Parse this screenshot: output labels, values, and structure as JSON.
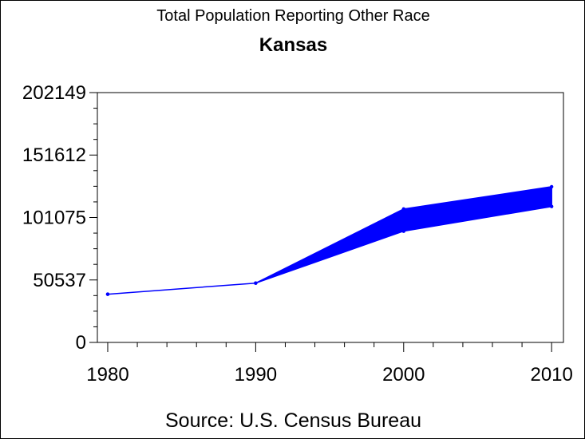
{
  "chart_data": {
    "type": "area",
    "title": "Total Population Reporting Other Race",
    "subtitle": "Kansas",
    "xlabel": "",
    "ylabel": "",
    "source": "Source: U.S. Census Bureau",
    "x": [
      1980,
      1990,
      2000,
      2010
    ],
    "xlim": [
      1979.3,
      2010.8
    ],
    "ylim": [
      0,
      202149
    ],
    "yticks": [
      0,
      50537,
      101075,
      151612,
      202149
    ],
    "yticklabels": [
      "0",
      "50537",
      "101075",
      "151612",
      "202149"
    ],
    "xticks": [
      1980,
      1990,
      2000,
      2010
    ],
    "xticklabels": [
      "1980",
      "1990",
      "2000",
      "2010"
    ],
    "grid": false,
    "series": [
      {
        "values_low": [
          39000,
          48000,
          90000,
          110000
        ],
        "values_high": [
          39000,
          48000,
          108000,
          126000
        ]
      }
    ],
    "color": "#0000ff"
  }
}
